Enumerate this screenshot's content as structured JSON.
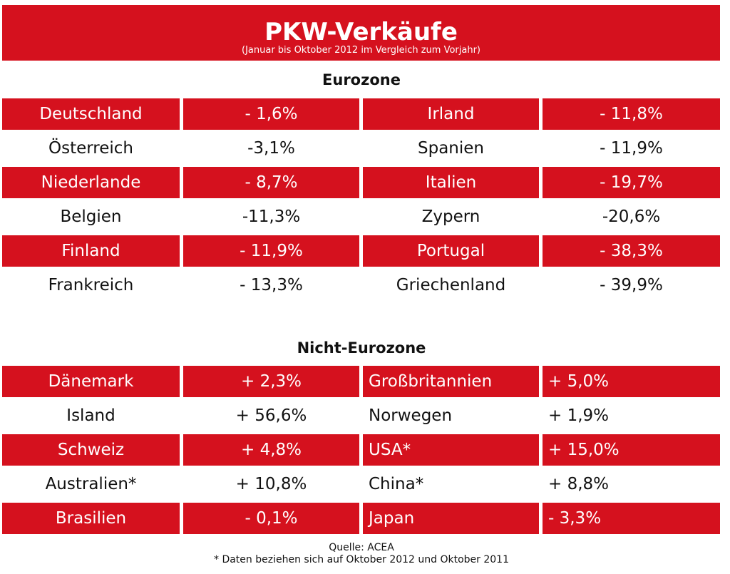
{
  "header": {
    "title": "PKW-Verkäufe",
    "subtitle": "(Januar bis Oktober 2012 im Vergleich zum Vorjahr)"
  },
  "colors": {
    "accent_red": "#d5111e",
    "text": "#111111",
    "background": "#ffffff"
  },
  "chart_data": {
    "type": "table",
    "title": "PKW-Verkäufe",
    "subtitle": "(Januar bis Oktober 2012 im Vergleich zum Vorjahr)",
    "sections": [
      {
        "title": "Eurozone",
        "rows": [
          [
            "Deutschland",
            "- 1,6%",
            "Irland",
            "- 11,8%"
          ],
          [
            "Österreich",
            "-3,1%",
            "Spanien",
            "- 11,9%"
          ],
          [
            "Niederlande",
            "- 8,7%",
            "Italien",
            "- 19,7%"
          ],
          [
            "Belgien",
            "-11,3%",
            "Zypern",
            "-20,6%"
          ],
          [
            "Finland",
            "- 11,9%",
            "Portugal",
            "- 38,3%"
          ],
          [
            "Frankreich",
            "- 13,3%",
            "Griechenland",
            "- 39,9%"
          ]
        ]
      },
      {
        "title": "Nicht-Eurozone",
        "rows": [
          [
            "Dänemark",
            "+ 2,3%",
            "Großbritannien",
            "+ 5,0%"
          ],
          [
            "Island",
            "+ 56,6%",
            "Norwegen",
            "+ 1,9%"
          ],
          [
            "Schweiz",
            "+ 4,8%",
            "USA*",
            "+ 15,0%"
          ],
          [
            "Australien*",
            "+ 10,8%",
            "China*",
            "+ 8,8%"
          ],
          [
            "Brasilien",
            "- 0,1%",
            "Japan",
            "- 3,3%"
          ]
        ]
      }
    ]
  },
  "footer": {
    "source": "Quelle: ACEA",
    "note": "* Daten beziehen sich auf Oktober 2012 und Oktober 2011"
  }
}
